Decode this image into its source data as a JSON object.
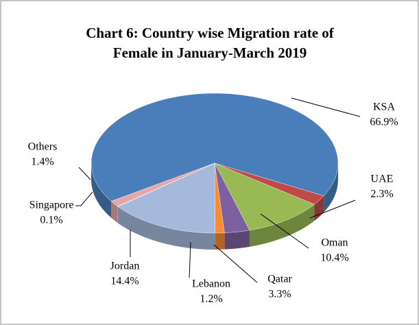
{
  "chart_data": {
    "type": "pie3d",
    "title": [
      "Chart 6: Country wise Migration rate of",
      "Female in January-March  2019"
    ],
    "categories": [
      "KSA",
      "UAE",
      "Oman",
      "Qatar",
      "Lebanon",
      "Jordan",
      "Singapore",
      "Others"
    ],
    "values": [
      66.9,
      2.3,
      10.4,
      3.3,
      1.2,
      14.4,
      0.1,
      1.4
    ],
    "value_labels": [
      "66.9%",
      "2.3%",
      "10.4%",
      "3.3%",
      "1.2%",
      "14.4%",
      "0.1%",
      "1.4%"
    ],
    "colors": [
      "#4a7ebb",
      "#be4b48",
      "#98b954",
      "#7d60a0",
      "#f68c36",
      "#a5b9dc",
      "#c6d9a0",
      "#e6a6a6"
    ]
  }
}
